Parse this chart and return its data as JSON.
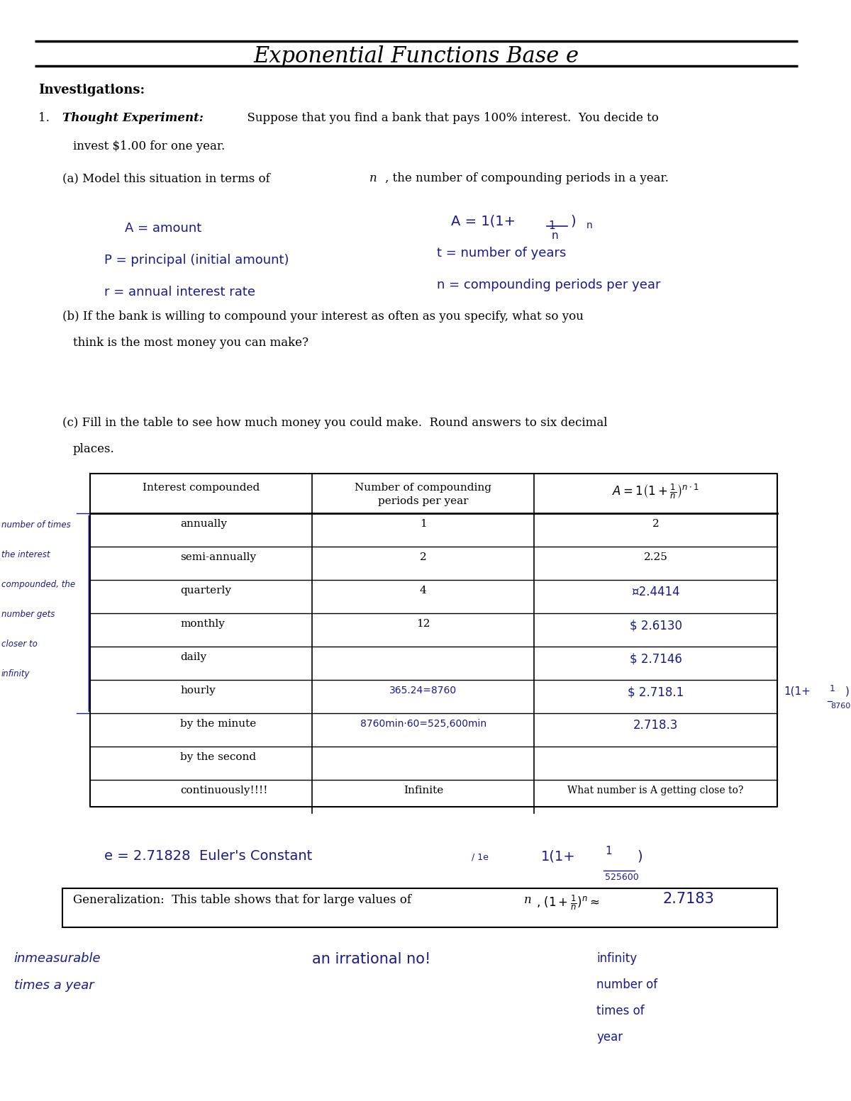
{
  "title": "Exponential Functions Base e",
  "bg_color": "#ffffff",
  "investigations_label": "Investigations:",
  "q1_text": "1.  Thought Experiment:  Suppose that you find a bank that pays 100% interest.  You decide to\n    invest $1.00 for one year.",
  "qa_text": "    (a) Model this situation in terms of n, the number of compounding periods in a year.",
  "qb_text": "    (b) If the bank is willing to compound your interest as often as you specify, what so you\n        think is the most money you can make?",
  "qc_text": "    (c) Fill in the table to see how much money you could make.  Round answers to six decimal\n        places.",
  "handwritten_a1": "A = amount",
  "handwritten_p": "P = principal (initial amount)",
  "handwritten_r": "r = annual interest rate",
  "handwritten_t": "t = number of years",
  "handwritten_n": "n = compounding periods per year",
  "handwritten_formula": "A = 1(1+½ⁿ)",
  "table_headers": [
    "Interest compounded",
    "Number of compounding\nperiods per year",
    "A = 1(1+¹/ₙ)ⁿ¹"
  ],
  "table_rows": [
    [
      "annually",
      "1",
      "2"
    ],
    [
      "semi-annually",
      "2",
      "2.25"
    ],
    [
      "quarterly",
      "4",
      "¤2.4414"
    ],
    [
      "monthly",
      "12",
      "$ 2.6130"
    ],
    [
      "daily",
      "",
      "$ 2.7146"
    ],
    [
      "hourly",
      "365.24=8760",
      "$ 2.718.1"
    ],
    [
      "by the minute",
      "8760min·60=525,600min",
      "2.718.3"
    ],
    [
      "by the second",
      "",
      ""
    ],
    [
      "continuously!!!!",
      "Infinite",
      "What number is A getting close to?"
    ]
  ],
  "left_annotation_lines": [
    "number of times",
    "the interest",
    "compounded, the",
    "number gets",
    "closer to",
    "infinity"
  ],
  "right_annotation": "1(1+¹/₈₇₆₀)",
  "euler_line": "e = 2.71828  Euler's Constant  1(1+¹/₋₋₋₋₋₋)",
  "generalization_box": "Generalization:  This table shows that for large values of n, (1+¹/ₙ)ⁿ ≈ 2.7183",
  "bottom_left": "inmeasurable\ntimes a year",
  "bottom_right": "an irrational no!    infinity\n                       number of\n                       times of\n                       year"
}
